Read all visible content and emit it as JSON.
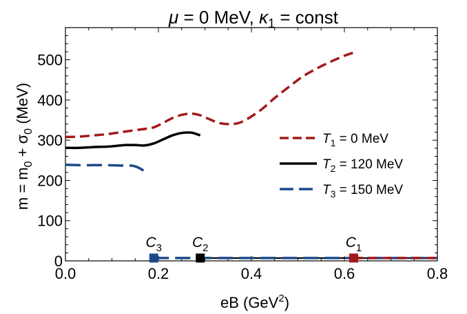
{
  "chart_data": {
    "type": "line",
    "title": {
      "mu": "μ",
      "part1": " = 0 MeV, ",
      "kappa": "κ",
      "kappa_sub": "1",
      "part2": " = const"
    },
    "xlabel": {
      "base": "eB (GeV",
      "sup": "2",
      "end": ")"
    },
    "ylabel": {
      "m": "m = m",
      "m_sub": "0",
      "plus": " + σ",
      "sigma_sub": "0",
      "unit": " (MeV)"
    },
    "xlim": [
      0.0,
      0.8
    ],
    "ylim": [
      0,
      580
    ],
    "x_ticks": [
      {
        "value": 0.0,
        "label": "0.0"
      },
      {
        "value": 0.2,
        "label": "0.2"
      },
      {
        "value": 0.4,
        "label": "0.4"
      },
      {
        "value": 0.6,
        "label": "0.6"
      },
      {
        "value": 0.8,
        "label": "0.8"
      }
    ],
    "y_ticks": [
      {
        "value": 0,
        "label": "0"
      },
      {
        "value": 100,
        "label": "100"
      },
      {
        "value": 200,
        "label": "200"
      },
      {
        "value": 300,
        "label": "300"
      },
      {
        "value": 400,
        "label": "400"
      },
      {
        "value": 500,
        "label": "500"
      }
    ],
    "grid": false,
    "legend_position": "right",
    "series": [
      {
        "key": "T1",
        "legend_sym": "T",
        "legend_sub": "1",
        "legend_value": " = 0 MeV",
        "color": "#a31a1a",
        "style": "dashed",
        "x": [
          0.0,
          0.03,
          0.06,
          0.09,
          0.12,
          0.15,
          0.17,
          0.19,
          0.21,
          0.23,
          0.25,
          0.27,
          0.29,
          0.31,
          0.33,
          0.35,
          0.37,
          0.39,
          0.42,
          0.45,
          0.48,
          0.51,
          0.54,
          0.57,
          0.6,
          0.62
        ],
        "y": [
          308,
          309,
          312,
          315,
          320,
          325,
          328,
          332,
          343,
          355,
          363,
          366,
          362,
          352,
          343,
          340,
          342,
          352,
          375,
          405,
          432,
          458,
          478,
          495,
          510,
          518
        ],
        "crit_x": [
          0.62,
          0.8
        ],
        "crit_y": [
          7,
          7
        ]
      },
      {
        "key": "T2",
        "legend_sym": "T",
        "legend_sub": "2",
        "legend_value": " = 120 MeV",
        "color": "#000000",
        "style": "solid",
        "x": [
          0.0,
          0.03,
          0.06,
          0.09,
          0.11,
          0.13,
          0.15,
          0.17,
          0.19,
          0.21,
          0.23,
          0.25,
          0.27,
          0.28,
          0.29
        ],
        "y": [
          281,
          281,
          283,
          284,
          286,
          288,
          288,
          287,
          292,
          302,
          312,
          318,
          319,
          316,
          312
        ],
        "crit_x": [
          0.29,
          0.8
        ],
        "crit_y": [
          7,
          7
        ]
      },
      {
        "key": "T3",
        "legend_sym": "T",
        "legend_sub": "3",
        "legend_value": " = 150 MeV",
        "color": "#1a4a8a",
        "style": "longdash",
        "x": [
          0.0,
          0.03,
          0.06,
          0.09,
          0.12,
          0.14,
          0.15,
          0.16,
          0.17
        ],
        "y": [
          239,
          238,
          238,
          238,
          237,
          237,
          235,
          230,
          223
        ],
        "crit_x": [
          0.19,
          0.8
        ],
        "crit_y": [
          7,
          7
        ]
      }
    ],
    "critical_points": [
      {
        "name": "C",
        "sub": "3",
        "x": 0.19,
        "y": 7,
        "color": "#1a4a8a"
      },
      {
        "name": "C",
        "sub": "2",
        "x": 0.29,
        "y": 7,
        "color": "#000000"
      },
      {
        "name": "C",
        "sub": "1",
        "x": 0.62,
        "y": 7,
        "color": "#a31a1a"
      }
    ]
  }
}
